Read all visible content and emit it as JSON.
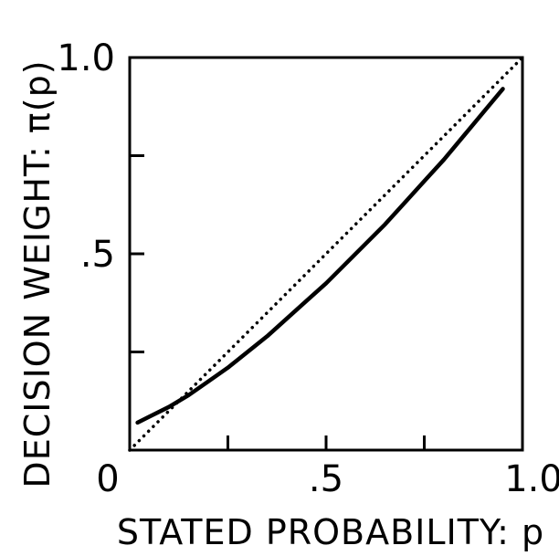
{
  "chart_data": {
    "type": "line",
    "xlabel": "STATED PROBABILITY: p",
    "ylabel": "DECISION WEIGHT: π(p)",
    "xlim": [
      0,
      1
    ],
    "ylim": [
      0,
      1
    ],
    "x_ticks": [
      0,
      0.25,
      0.5,
      0.75,
      1.0
    ],
    "y_ticks": [
      0,
      0.25,
      0.5,
      0.75,
      1.0
    ],
    "x_tick_labels": [
      "0",
      "",
      ".5",
      "",
      "1.0"
    ],
    "y_tick_labels": [
      "",
      "",
      ".5",
      "",
      "1.0"
    ],
    "grid": false,
    "series": [
      {
        "style": "solid",
        "x": [
          0.02,
          0.05,
          0.1,
          0.15,
          0.2,
          0.25,
          0.3,
          0.35,
          0.4,
          0.45,
          0.5,
          0.55,
          0.6,
          0.65,
          0.7,
          0.75,
          0.8,
          0.85,
          0.9,
          0.95
        ],
        "y": [
          0.07,
          0.085,
          0.11,
          0.14,
          0.175,
          0.21,
          0.25,
          0.29,
          0.335,
          0.38,
          0.425,
          0.475,
          0.525,
          0.575,
          0.63,
          0.685,
          0.74,
          0.8,
          0.86,
          0.92
        ]
      },
      {
        "style": "dotted",
        "x": [
          0,
          1
        ],
        "y": [
          0,
          1
        ]
      }
    ]
  }
}
